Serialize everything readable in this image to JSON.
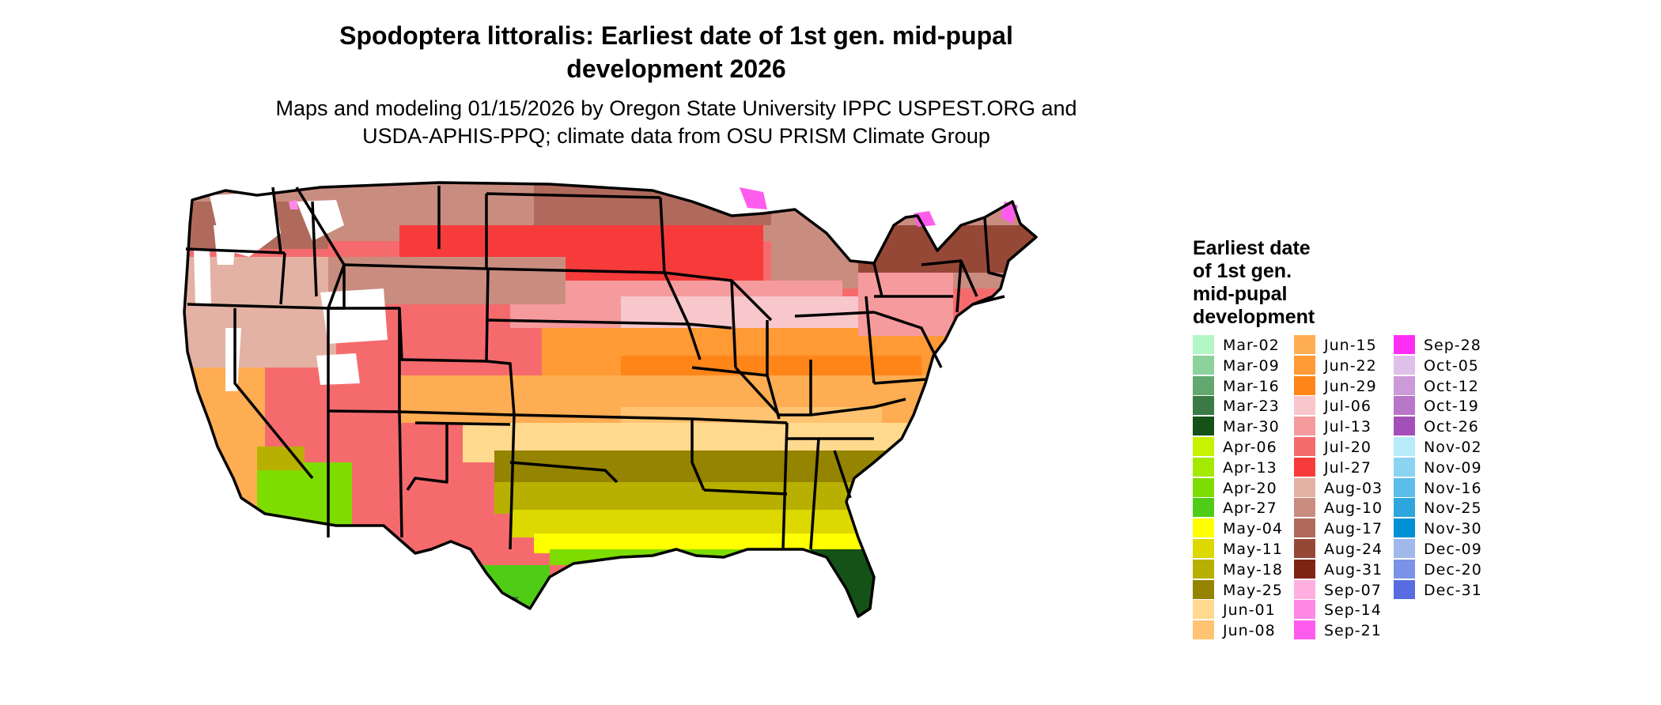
{
  "title": {
    "line1": "Spodoptera littoralis: Earliest date of 1st gen. mid-pupal",
    "line2": "development 2026"
  },
  "subtitle": {
    "line1": "Maps and modeling 01/15/2026 by Oregon State University IPPC USPEST.ORG and",
    "line2": "USDA-APHIS-PPQ; climate data from OSU PRISM Climate Group"
  },
  "legend": {
    "title_lines": [
      "Earliest date",
      "of 1st gen.",
      "mid-pupal",
      "development"
    ],
    "columns": [
      [
        {
          "label": "Mar-02",
          "color": "#b3f5c5"
        },
        {
          "label": "Mar-09",
          "color": "#8dd19c"
        },
        {
          "label": "Mar-16",
          "color": "#63a86f"
        },
        {
          "label": "Mar-23",
          "color": "#3b7a44"
        },
        {
          "label": "Mar-30",
          "color": "#155217"
        },
        {
          "label": "Apr-06",
          "color": "#c7f200"
        },
        {
          "label": "Apr-13",
          "color": "#a4ea00"
        },
        {
          "label": "Apr-20",
          "color": "#7fdc00"
        },
        {
          "label": "Apr-27",
          "color": "#4fcc16"
        },
        {
          "label": "May-04",
          "color": "#ffff00"
        },
        {
          "label": "May-11",
          "color": "#dcd800"
        },
        {
          "label": "May-18",
          "color": "#b8b000"
        },
        {
          "label": "May-25",
          "color": "#948400"
        },
        {
          "label": "Jun-01",
          "color": "#ffd98e"
        },
        {
          "label": "Jun-08",
          "color": "#ffc371"
        }
      ],
      [
        {
          "label": "Jun-15",
          "color": "#ffad52"
        },
        {
          "label": "Jun-22",
          "color": "#ff9a35"
        },
        {
          "label": "Jun-29",
          "color": "#ff8519"
        },
        {
          "label": "Jul-06",
          "color": "#f7c7cc"
        },
        {
          "label": "Jul-13",
          "color": "#f59b9e"
        },
        {
          "label": "Jul-20",
          "color": "#f56b6d"
        },
        {
          "label": "Jul-27",
          "color": "#f73b3b"
        },
        {
          "label": "Aug-03",
          "color": "#e3b2a4"
        },
        {
          "label": "Aug-10",
          "color": "#c98d80"
        },
        {
          "label": "Aug-17",
          "color": "#b06a5c"
        },
        {
          "label": "Aug-24",
          "color": "#964837"
        },
        {
          "label": "Aug-31",
          "color": "#7d2614"
        },
        {
          "label": "Sep-07",
          "color": "#ffafdf"
        },
        {
          "label": "Sep-14",
          "color": "#ff88e6"
        },
        {
          "label": "Sep-21",
          "color": "#ff5cee"
        }
      ],
      [
        {
          "label": "Sep-28",
          "color": "#ff2ef5"
        },
        {
          "label": "Oct-05",
          "color": "#dfc0e8"
        },
        {
          "label": "Oct-12",
          "color": "#cc9ad8"
        },
        {
          "label": "Oct-19",
          "color": "#b876c8"
        },
        {
          "label": "Oct-26",
          "color": "#a44fb8"
        },
        {
          "label": "Nov-02",
          "color": "#b8ecfb"
        },
        {
          "label": "Nov-09",
          "color": "#8ad4f2"
        },
        {
          "label": "Nov-16",
          "color": "#5bbde8"
        },
        {
          "label": "Nov-25",
          "color": "#2ea5dd"
        },
        {
          "label": "Nov-30",
          "color": "#0090d4"
        },
        {
          "label": "Dec-09",
          "color": "#a0b8ea"
        },
        {
          "label": "Dec-20",
          "color": "#7b93e6"
        },
        {
          "label": "Dec-31",
          "color": "#566ce0"
        }
      ]
    ]
  }
}
